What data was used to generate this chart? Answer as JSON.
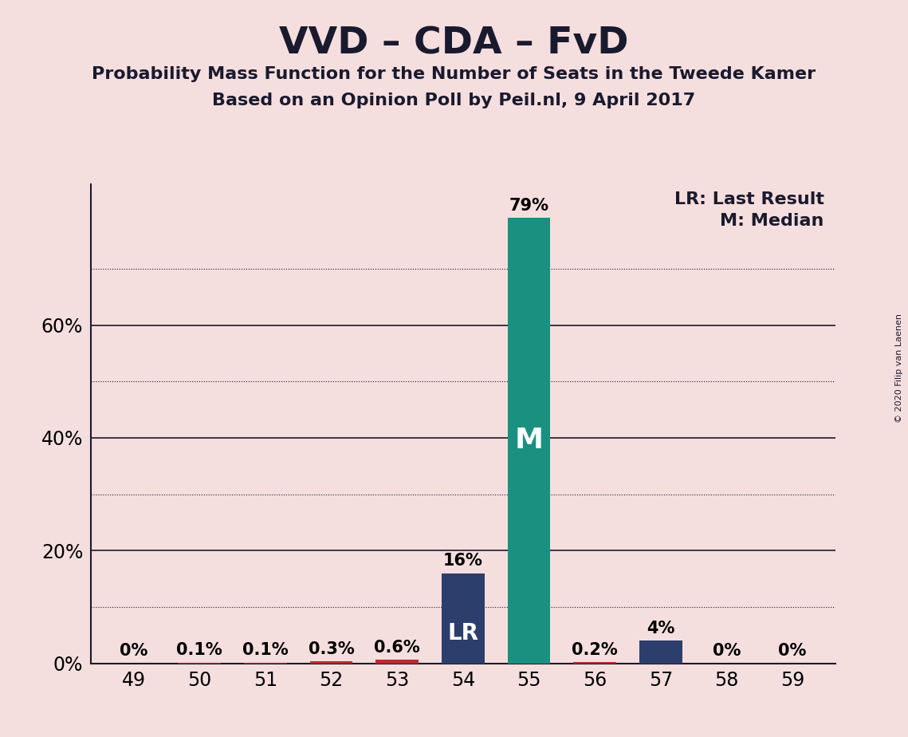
{
  "title": "VVD – CDA – FvD",
  "subtitle1": "Probability Mass Function for the Number of Seats in the Tweede Kamer",
  "subtitle2": "Based on an Opinion Poll by Peil.nl, 9 April 2017",
  "categories": [
    49,
    50,
    51,
    52,
    53,
    54,
    55,
    56,
    57,
    58,
    59
  ],
  "values": [
    0.0,
    0.1,
    0.1,
    0.3,
    0.6,
    16.0,
    79.0,
    0.2,
    4.0,
    0.0,
    0.0
  ],
  "label_LR": "LR",
  "label_M": "M",
  "LR_index": 5,
  "M_index": 6,
  "copyright": "© 2020 Filip van Laenen",
  "background_color": "#f5dede",
  "bar_color_normal": "#b03030",
  "bar_color_LR": "#2c3e6b",
  "bar_color_M": "#1a9080",
  "bar_color_57": "#2c3e6b",
  "ylim": [
    0,
    85
  ],
  "solid_yticks": [
    20,
    40,
    60
  ],
  "dotted_yticks": [
    10,
    30,
    50,
    70
  ],
  "ytick_positions": [
    0,
    20,
    40,
    60
  ],
  "ytick_labels": [
    "0%",
    "20%",
    "40%",
    "60%"
  ],
  "title_fontsize": 34,
  "subtitle_fontsize": 16,
  "bar_label_fontsize": 15,
  "inner_label_fontsize": 20,
  "tick_fontsize": 17,
  "legend_fontsize": 16
}
